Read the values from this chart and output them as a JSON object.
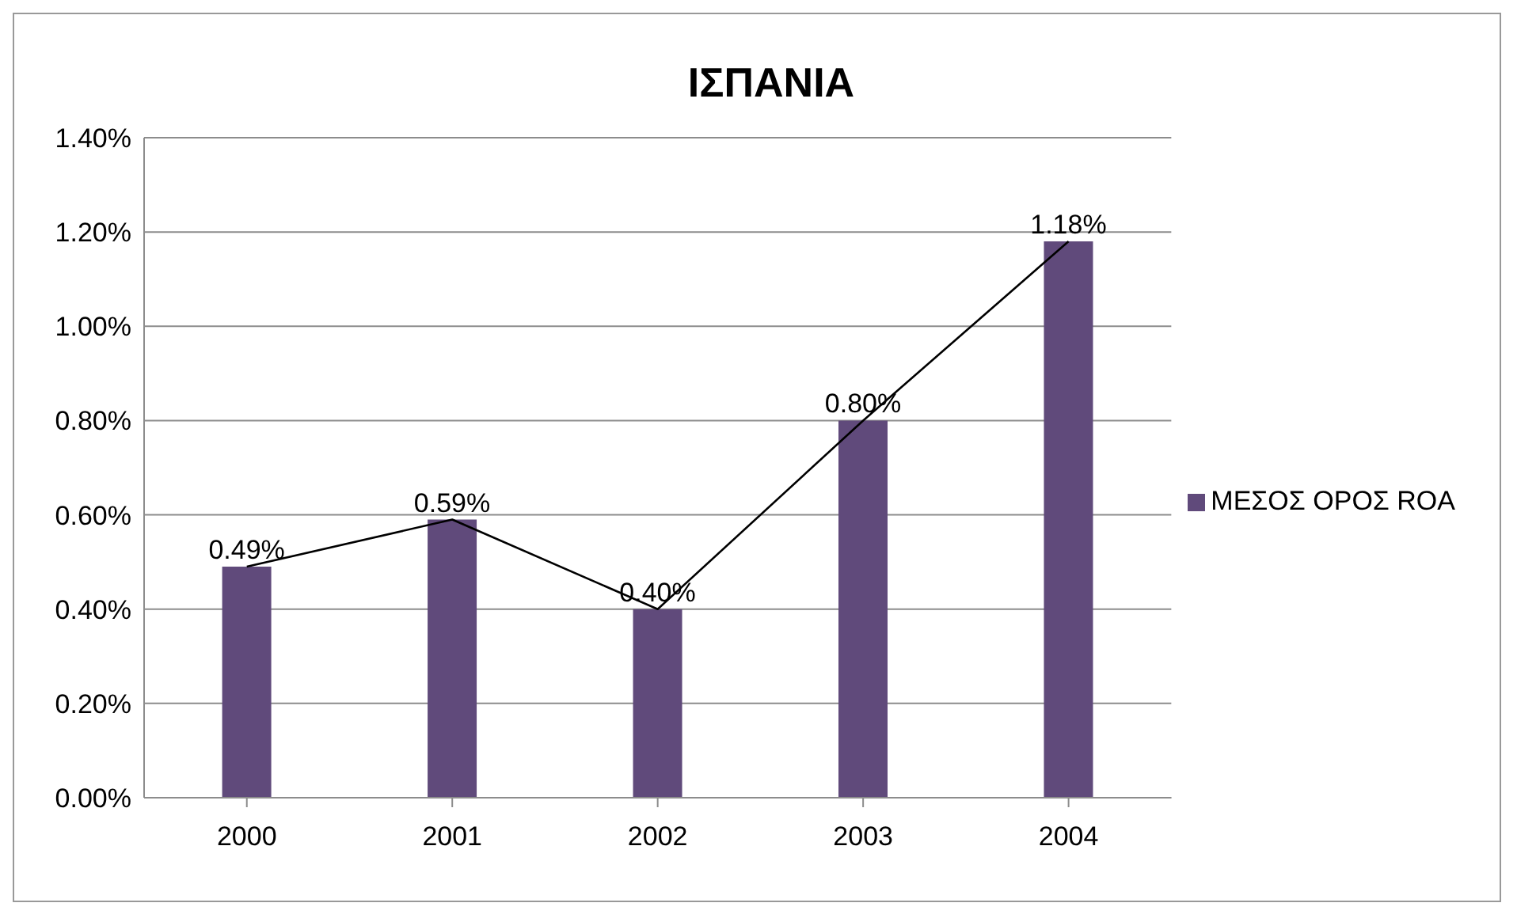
{
  "chart_data": {
    "type": "bar",
    "title": "ΙΣΠΑΝΙΑ",
    "categories": [
      "2000",
      "2001",
      "2002",
      "2003",
      "2004"
    ],
    "series": [
      {
        "name": "ΜΕΣΟΣ ΟΡΟΣ ROA",
        "color": "#604a7b",
        "values": [
          0.49,
          0.59,
          0.4,
          0.8,
          1.18
        ],
        "value_labels": [
          "0.49%",
          "0.59%",
          "0.40%",
          "0.80%",
          "1.18%"
        ]
      },
      {
        "type": "line",
        "color": "#000000",
        "values": [
          0.49,
          0.59,
          0.4,
          0.8,
          1.18
        ]
      }
    ],
    "ylim": [
      0,
      1.4
    ],
    "yticks": [
      {
        "value": 0,
        "label": "0.00%"
      },
      {
        "value": 0.2,
        "label": "0.20%"
      },
      {
        "value": 0.4,
        "label": "0.40%"
      },
      {
        "value": 0.6,
        "label": "0.60%"
      },
      {
        "value": 0.8,
        "label": "0.80%"
      },
      {
        "value": 1.0,
        "label": "1.00%"
      },
      {
        "value": 1.2,
        "label": "1.20%"
      },
      {
        "value": 1.4,
        "label": "1.40%"
      }
    ],
    "grid": "y",
    "legend": "right",
    "marker": "none"
  }
}
